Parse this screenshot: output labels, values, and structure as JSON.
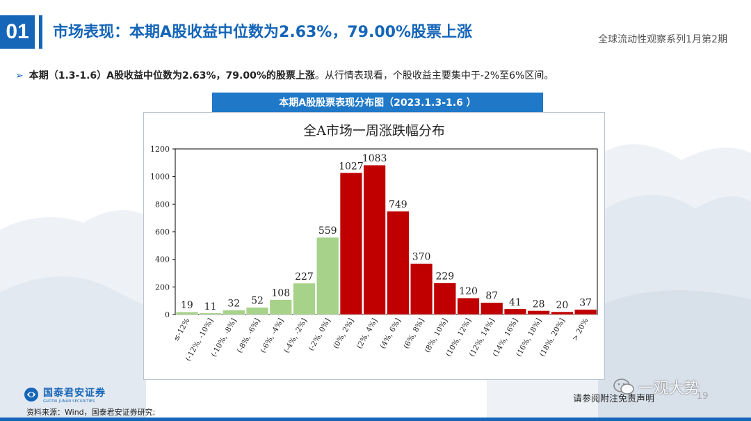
{
  "header": {
    "section_number": "01",
    "title": "市场表现：本期A股收益中位数为2.63%，79.00%股票上涨",
    "series_title": "全球流动性观察系列1月第2期"
  },
  "bullet": {
    "bold_text": "本期（1.3-1.6）A股收益中位数为2.63%，79.00%的股票上涨",
    "normal_text": "。从行情表现看，个股收益主要集中于-2%至6%区间。"
  },
  "chart_banner": "本期A股股票表现分布图（2023.1.3-1.6 ）",
  "chart_data": {
    "type": "bar",
    "title": "全A市场一周涨跌幅分布",
    "xlabel": "",
    "ylabel": "",
    "ylim": [
      0,
      1200
    ],
    "yticks": [
      0,
      200,
      400,
      600,
      800,
      1000,
      1200
    ],
    "grid": false,
    "categories": [
      "≤-12%",
      "(-12%, -10%]",
      "(-10%, -8%]",
      "(-8%, -6%]",
      "(-6%, -4%]",
      "(-4%, -2%]",
      "(-2%, 0%]",
      "(0%, 2%]",
      "(2%, 4%]",
      "(4%, 6%]",
      "(6%, 8%]",
      "(8%, 10%]",
      "(10%, 12%]",
      "(12%, 14%]",
      "(14%, 16%]",
      "(16%, 18%]",
      "(18%, 20%]",
      "> 20%"
    ],
    "values": [
      19,
      11,
      32,
      52,
      108,
      227,
      559,
      1027,
      1083,
      749,
      370,
      229,
      120,
      87,
      41,
      28,
      20,
      37
    ],
    "colors": [
      "#a6d28a",
      "#a6d28a",
      "#a6d28a",
      "#a6d28a",
      "#a6d28a",
      "#a6d28a",
      "#a6d28a",
      "#c00000",
      "#c00000",
      "#c00000",
      "#c00000",
      "#c00000",
      "#c00000",
      "#c00000",
      "#c00000",
      "#c00000",
      "#c00000",
      "#c00000"
    ]
  },
  "footer": {
    "logo_cn": "国泰君安证券",
    "logo_en": "GUOTAI JUNAN SECURITIES",
    "source": "资料来源：Wind，国泰君安证券研究;",
    "disclaimer": "请参阅附注免责声明",
    "page_number": "19",
    "watermark": "一观大势"
  },
  "colors": {
    "brand_blue": "#1565b8",
    "banner_blue": "#1f78c8",
    "up_red": "#c00000",
    "down_green": "#a6d28a"
  }
}
